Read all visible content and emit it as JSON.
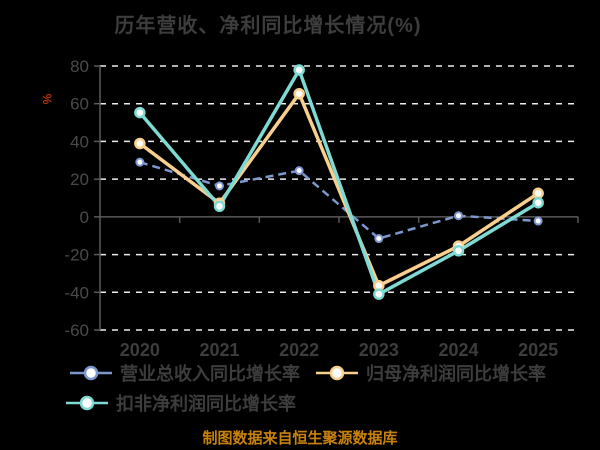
{
  "title": "历年营收、净利同比增长情况(%)",
  "footer": "制图数据来自恒生聚源数据库",
  "chart_data": {
    "type": "line",
    "categories": [
      "2020",
      "2021",
      "2022",
      "2023",
      "2024",
      "2025"
    ],
    "series": [
      {
        "name": "营业总收入同比增长率",
        "color": "#7b97ce",
        "style": "dashed",
        "values": [
          29,
          16.4,
          24.5,
          -11.5,
          0.6,
          -2.2
        ]
      },
      {
        "name": "归母净利润同比增长率",
        "color": "#f9cf8e",
        "style": "solid",
        "values": [
          38.9,
          7.2,
          65.3,
          -36.5,
          -15.5,
          12.5
        ]
      },
      {
        "name": "扣非净利润同比增长率",
        "color": "#7edad2",
        "style": "solid",
        "values": [
          55.3,
          5.6,
          77.9,
          -41,
          -18,
          7.5
        ]
      }
    ],
    "ylabel": "%",
    "ylim": [
      -60,
      80
    ],
    "y_ticks": [
      80,
      60,
      40,
      20,
      0,
      -20,
      -40,
      -60
    ],
    "grid": "horizontal dashed, zero line solid",
    "legend_position": "bottom"
  },
  "colors": {
    "background": "#000000",
    "grid": "#ececec",
    "axis": "#5a5a5a",
    "tick_label": "#4a4a4a",
    "axis_label": "#3d3d3d",
    "title": "#3d3d3d",
    "ylabel": "#b33000",
    "footer": "#c8820b",
    "marker_fill": "#ffffff"
  }
}
